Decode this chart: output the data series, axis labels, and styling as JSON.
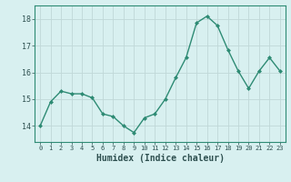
{
  "x": [
    0,
    1,
    2,
    3,
    4,
    5,
    6,
    7,
    8,
    9,
    10,
    11,
    12,
    13,
    14,
    15,
    16,
    17,
    18,
    19,
    20,
    21,
    22,
    23
  ],
  "y": [
    14.0,
    14.9,
    15.3,
    15.2,
    15.2,
    15.05,
    14.45,
    14.35,
    14.0,
    13.75,
    14.3,
    14.45,
    15.0,
    15.8,
    16.55,
    17.85,
    18.1,
    17.75,
    16.85,
    16.05,
    15.4,
    16.05,
    16.55,
    16.05
  ],
  "line_color": "#2e8b74",
  "marker": "D",
  "marker_size": 2,
  "bg_color": "#d8f0f0",
  "grid_color": "#c0d8d8",
  "axis_color": "#2e8b74",
  "tick_color": "#2e5050",
  "xlabel": "Humidex (Indice chaleur)",
  "xlabel_fontsize": 7,
  "yticks": [
    14,
    15,
    16,
    17,
    18
  ],
  "ylim": [
    13.4,
    18.5
  ],
  "xlim": [
    -0.5,
    23.5
  ],
  "xtick_fontsize": 5,
  "ytick_fontsize": 6,
  "linewidth": 1.0
}
